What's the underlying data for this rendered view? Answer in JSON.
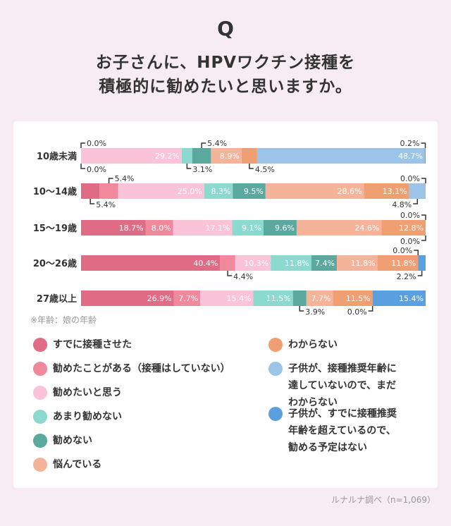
{
  "question_mark": "Q",
  "headline": "お子さんに、HPVワクチン接種を\n積極的に勧めたいと思いますか。",
  "note": "※年齢：娘の年齢",
  "source": "ルナルナ調べ（n=1,069）",
  "colors": {
    "already": "#e06b84",
    "want_but_not": "#f1899d",
    "want": "#fbc3d7",
    "not_much": "#8bd9cf",
    "not": "#5aa89e",
    "worried": "#f5b49a",
    "unknown": "#ef9f72",
    "too_young": "#9cc4e8",
    "too_old": "#5aa0e0"
  },
  "chart_data": {
    "type": "bar",
    "orientation": "horizontal",
    "stacked": true,
    "percent": true,
    "categories": [
      "10歳未満",
      "10～14歳",
      "15～19歳",
      "20～26歳",
      "27歳以上"
    ],
    "series": [
      {
        "key": "already",
        "name": "すでに接種させた",
        "values": [
          0.0,
          5.4,
          18.7,
          40.4,
          26.9
        ]
      },
      {
        "key": "want_but_not",
        "name": "勧めたことがある（接種はしていない）",
        "values": [
          0.0,
          5.4,
          8.0,
          4.4,
          7.7
        ]
      },
      {
        "key": "want",
        "name": "勧めたいと思う",
        "values": [
          29.2,
          25.0,
          17.1,
          10.3,
          15.4
        ]
      },
      {
        "key": "not_much",
        "name": "あまり勧めない",
        "values": [
          3.1,
          8.3,
          9.1,
          11.8,
          11.5
        ]
      },
      {
        "key": "not",
        "name": "勧めない",
        "values": [
          5.4,
          9.5,
          9.6,
          7.4,
          3.9
        ]
      },
      {
        "key": "worried",
        "name": "悩んでいる",
        "values": [
          8.9,
          28.6,
          24.6,
          11.8,
          7.7
        ]
      },
      {
        "key": "unknown",
        "name": "わからない",
        "values": [
          4.5,
          13.1,
          12.8,
          11.8,
          11.5
        ]
      },
      {
        "key": "too_young",
        "name": "子供が、接種推奨年齢に\n達していないので、まだ\nわからない",
        "values": [
          48.7,
          4.8,
          0.0,
          0.0,
          0.0
        ]
      },
      {
        "key": "too_old",
        "name": "子供が、すでに接種推奨\n年齢を超えているので、\n勧める予定はない",
        "values": [
          0.2,
          0.0,
          0.0,
          2.2,
          15.4
        ]
      }
    ],
    "bar_labels": [
      [
        {
          "s": 2,
          "t": "29.2%"
        },
        {
          "s": 5,
          "t": "8.9%"
        },
        {
          "s": 7,
          "t": "48.7%"
        }
      ],
      [
        {
          "s": 2,
          "t": "25.0%"
        },
        {
          "s": 3,
          "t": "8.3%"
        },
        {
          "s": 4,
          "t": "9.5%"
        },
        {
          "s": 5,
          "t": "28.6%"
        },
        {
          "s": 6,
          "t": "13.1%"
        }
      ],
      [
        {
          "s": 0,
          "t": "18.7%"
        },
        {
          "s": 1,
          "t": "8.0%"
        },
        {
          "s": 2,
          "t": "17.1%"
        },
        {
          "s": 3,
          "t": "9.1%"
        },
        {
          "s": 4,
          "t": "9.6%"
        },
        {
          "s": 5,
          "t": "24.6%"
        },
        {
          "s": 6,
          "t": "12.8%"
        }
      ],
      [
        {
          "s": 0,
          "t": "40.4%"
        },
        {
          "s": 2,
          "t": "10.3%"
        },
        {
          "s": 3,
          "t": "11.8%"
        },
        {
          "s": 4,
          "t": "7.4%"
        },
        {
          "s": 5,
          "t": "11.8%"
        },
        {
          "s": 6,
          "t": "11.8%"
        }
      ],
      [
        {
          "s": 0,
          "t": "26.9%"
        },
        {
          "s": 1,
          "t": "7.7%"
        },
        {
          "s": 2,
          "t": "15.4%"
        },
        {
          "s": 3,
          "t": "11.5%"
        },
        {
          "s": 5,
          "t": "7.7%"
        },
        {
          "s": 6,
          "t": "11.5%"
        },
        {
          "s": 8,
          "t": "15.4%"
        }
      ]
    ],
    "callouts": [
      [
        {
          "s": 0,
          "t": "0.0%",
          "pos": "above-left"
        },
        {
          "s": 1,
          "t": "0.0%",
          "pos": "below-left"
        },
        {
          "s": 3,
          "t": "3.1%",
          "pos": "below"
        },
        {
          "s": 4,
          "t": "5.4%",
          "pos": "above"
        },
        {
          "s": 6,
          "t": "4.5%",
          "pos": "below"
        },
        {
          "s": 8,
          "t": "0.2%",
          "pos": "above-right"
        }
      ],
      [
        {
          "s": 0,
          "t": "5.4%",
          "pos": "below-left"
        },
        {
          "s": 1,
          "t": "5.4%",
          "pos": "above"
        },
        {
          "s": 7,
          "t": "4.8%",
          "pos": "below-right"
        },
        {
          "s": 8,
          "t": "0.0%",
          "pos": "above-right"
        }
      ],
      [
        {
          "s": 7,
          "t": "0.0%",
          "pos": "above-right"
        },
        {
          "s": 8,
          "t": "0.0%",
          "pos": "below-right"
        }
      ],
      [
        {
          "s": 1,
          "t": "4.4%",
          "pos": "below"
        },
        {
          "s": 7,
          "t": "0.0%",
          "pos": "above-right"
        },
        {
          "s": 8,
          "t": "2.2%",
          "pos": "below-right"
        }
      ],
      [
        {
          "s": 4,
          "t": "3.9%",
          "pos": "below"
        },
        {
          "s": 7,
          "t": "0.0%",
          "pos": "below-right"
        }
      ]
    ]
  }
}
